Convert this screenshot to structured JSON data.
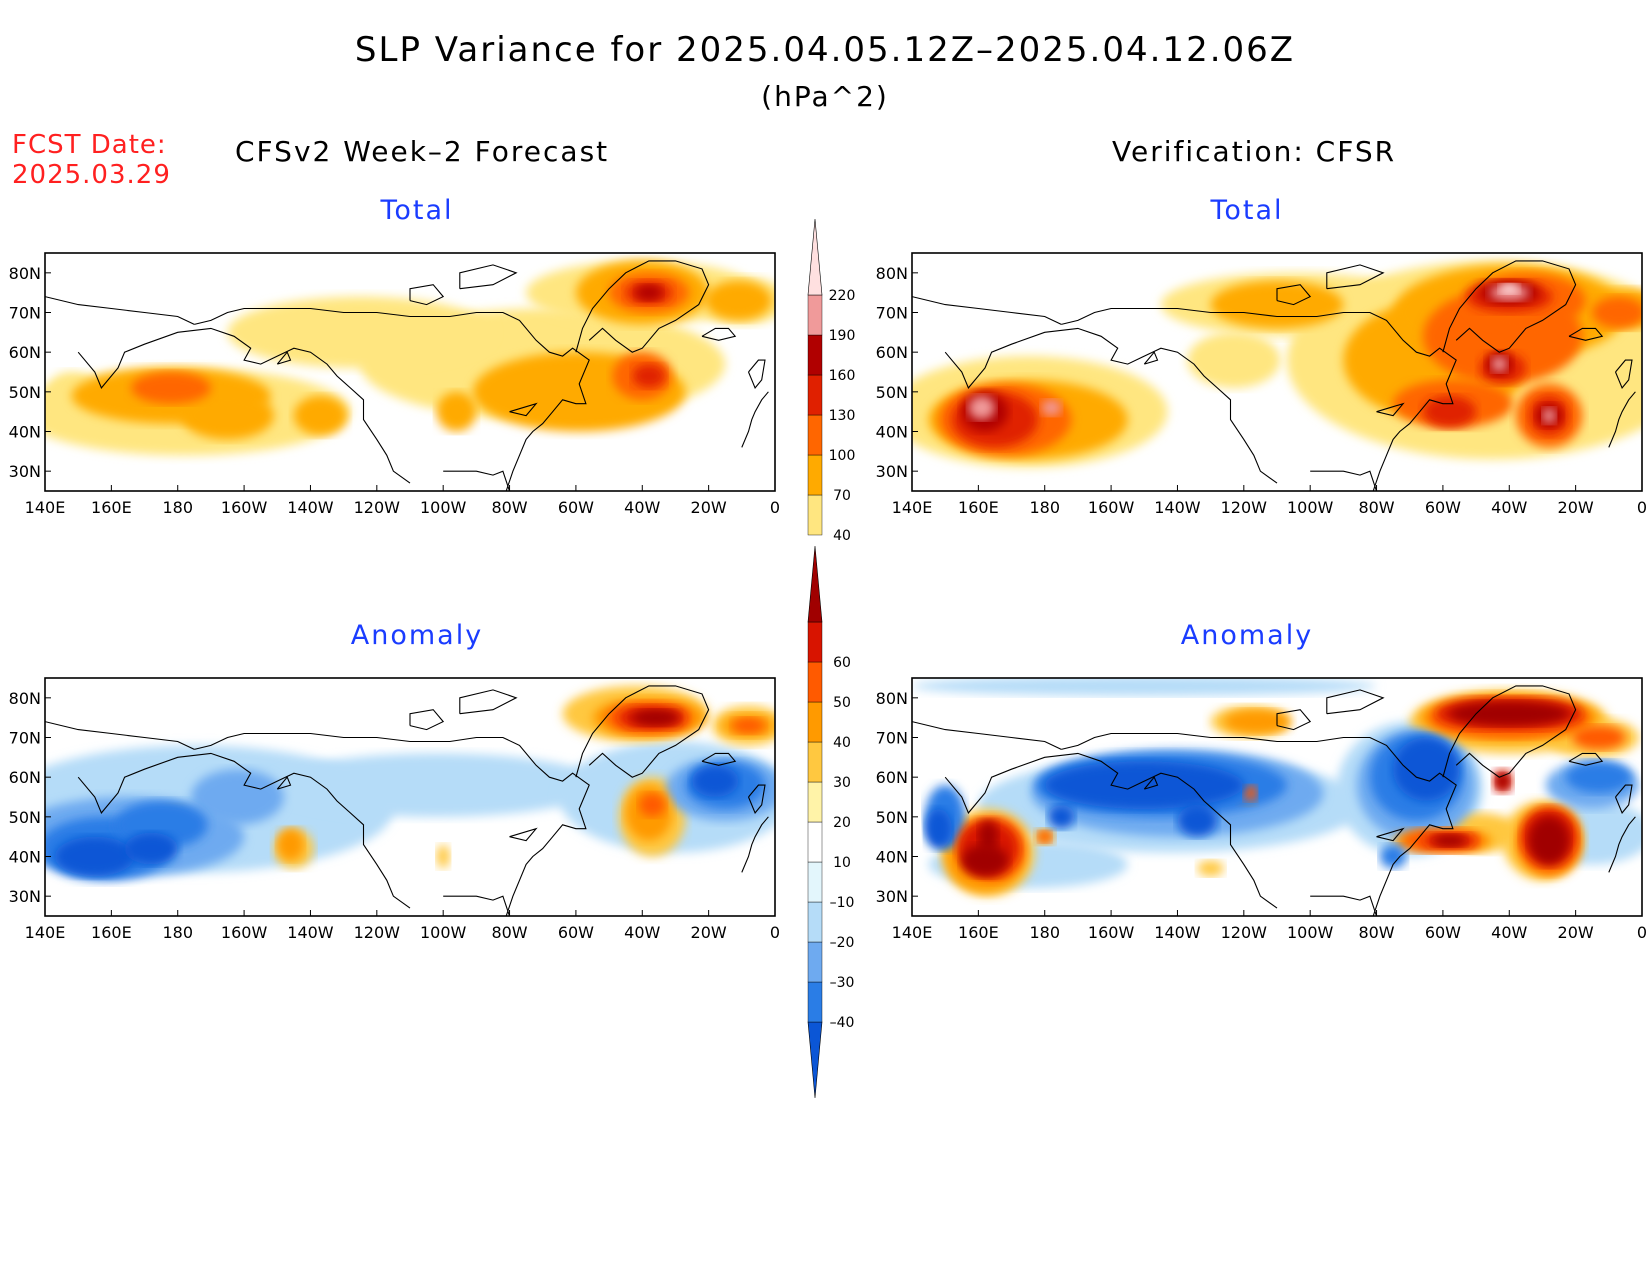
{
  "header": {
    "title": "SLP Variance for 2025.04.05.12Z–2025.04.12.06Z",
    "units": "(hPa^2)",
    "fcst_label": "FCST Date:",
    "fcst_date": "2025.03.29"
  },
  "columns": [
    {
      "title": "CFSv2 Week–2 Forecast"
    },
    {
      "title": "Verification: CFSR"
    }
  ],
  "row_titles": [
    "Total",
    "Anomaly"
  ],
  "map": {
    "lon_labels": [
      "140E",
      "160E",
      "180",
      "160W",
      "140W",
      "120W",
      "100W",
      "80W",
      "60W",
      "40W",
      "20W",
      "0"
    ],
    "lat_labels": [
      "80N",
      "70N",
      "60N",
      "50N",
      "40N",
      "30N"
    ],
    "lon_range": [
      140,
      360
    ],
    "lat_range": [
      25,
      85
    ]
  },
  "colorbars": {
    "total": {
      "ticks": [
        "40",
        "70",
        "100",
        "130",
        "160",
        "190",
        "220"
      ],
      "colors": [
        "#ffe680",
        "#ffaa00",
        "#ff6600",
        "#e02000",
        "#b00000",
        "#f09a9a",
        "#ffe0e0"
      ]
    },
    "anomaly": {
      "ticks": [
        "–40",
        "–30",
        "–20",
        "–10",
        "10",
        "20",
        "30",
        "40",
        "50",
        "60"
      ],
      "colors": [
        "#0b56d6",
        "#2a7de6",
        "#6eaaf0",
        "#b5dcf8",
        "#e3f6fc",
        "#ffffff",
        "#fff3a8",
        "#ffc840",
        "#ff9a00",
        "#ff5a00",
        "#d81400",
        "#a00000"
      ]
    }
  },
  "palette": {
    "total": [
      "#ffe680",
      "#ffaa00",
      "#ff6600",
      "#e02000",
      "#b00000",
      "#f09a9a",
      "#ffe0e0"
    ],
    "anom_pos": [
      "#fff3a8",
      "#ffc840",
      "#ff9a00",
      "#ff5a00",
      "#d81400",
      "#a00000"
    ],
    "anom_neg": [
      "#e3f6fc",
      "#b5dcf8",
      "#6eaaf0",
      "#2a7de6",
      "#0b56d6"
    ]
  }
}
